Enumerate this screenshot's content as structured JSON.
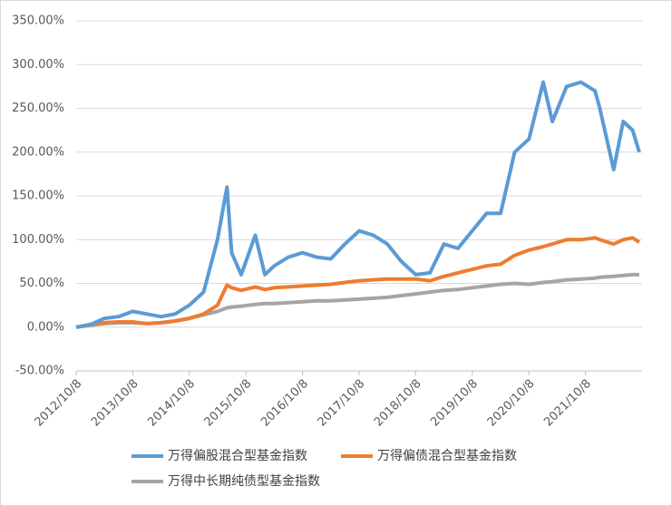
{
  "chart_data": {
    "type": "line",
    "x": [
      "2012/10/8",
      "2013/1/8",
      "2013/4/8",
      "2013/7/8",
      "2013/10/8",
      "2014/1/8",
      "2014/4/8",
      "2014/7/8",
      "2014/10/8",
      "2015/1/8",
      "2015/4/8",
      "2015/6/8",
      "2015/7/8",
      "2015/9/8",
      "2015/12/8",
      "2016/2/8",
      "2016/4/8",
      "2016/7/8",
      "2016/10/8",
      "2017/1/8",
      "2017/4/8",
      "2017/7/8",
      "2017/10/8",
      "2018/1/8",
      "2018/4/8",
      "2018/7/8",
      "2018/10/8",
      "2019/1/8",
      "2019/4/8",
      "2019/7/8",
      "2019/10/8",
      "2020/1/8",
      "2020/4/8",
      "2020/7/8",
      "2020/10/8",
      "2021/1/8",
      "2021/3/8",
      "2021/6/8",
      "2021/9/8",
      "2021/12/8",
      "2022/1/8",
      "2022/4/8",
      "2022/6/8",
      "2022/8/8",
      "2022/9/20"
    ],
    "series": [
      {
        "name": "万得偏股混合型基金指数",
        "color": "#5b9bd5",
        "values": [
          0,
          3,
          10,
          12,
          18,
          15,
          12,
          15,
          25,
          40,
          100,
          160,
          85,
          60,
          105,
          60,
          70,
          80,
          85,
          80,
          78,
          95,
          110,
          105,
          95,
          75,
          60,
          62,
          95,
          90,
          110,
          130,
          130,
          200,
          215,
          280,
          235,
          275,
          280,
          270,
          250,
          180,
          235,
          225,
          200
        ]
      },
      {
        "name": "万得偏债混合型基金指数",
        "color": "#ed7d31",
        "values": [
          0,
          3,
          5,
          6,
          6,
          4,
          5,
          7,
          10,
          15,
          25,
          48,
          45,
          42,
          46,
          43,
          45,
          46,
          47,
          48,
          49,
          51,
          53,
          54,
          55,
          55,
          55,
          53,
          58,
          62,
          66,
          70,
          72,
          82,
          88,
          92,
          95,
          100,
          100,
          102,
          100,
          95,
          100,
          102,
          97
        ]
      },
      {
        "name": "万得中长期纯债型基金指数",
        "color": "#a5a5a5",
        "values": [
          0,
          2,
          4,
          5,
          5,
          4,
          5,
          7,
          10,
          14,
          18,
          22,
          23,
          24,
          26,
          27,
          27,
          28,
          29,
          30,
          30,
          31,
          32,
          33,
          34,
          36,
          38,
          40,
          42,
          43,
          45,
          47,
          49,
          50,
          49,
          51,
          52,
          54,
          55,
          56,
          57,
          58,
          59,
          60,
          60
        ]
      }
    ],
    "xlim": [
      "2012/10/8",
      "2022/10/8"
    ],
    "xticks": [
      "2012/10/8",
      "2013/10/8",
      "2014/10/8",
      "2015/10/8",
      "2016/10/8",
      "2017/10/8",
      "2018/10/8",
      "2019/10/8",
      "2020/10/8",
      "2021/10/8"
    ],
    "ylim": [
      -50,
      350
    ],
    "yticks": [
      {
        "value": -50,
        "label": "-50.00%"
      },
      {
        "value": 0,
        "label": "0.00%"
      },
      {
        "value": 50,
        "label": "50.00%"
      },
      {
        "value": 100,
        "label": "100.00%"
      },
      {
        "value": 150,
        "label": "150.00%"
      },
      {
        "value": 200,
        "label": "200.00%"
      },
      {
        "value": 250,
        "label": "250.00%"
      },
      {
        "value": 300,
        "label": "300.00%"
      },
      {
        "value": 350,
        "label": "350.00%"
      }
    ],
    "grid": true,
    "legend": "bottom"
  }
}
